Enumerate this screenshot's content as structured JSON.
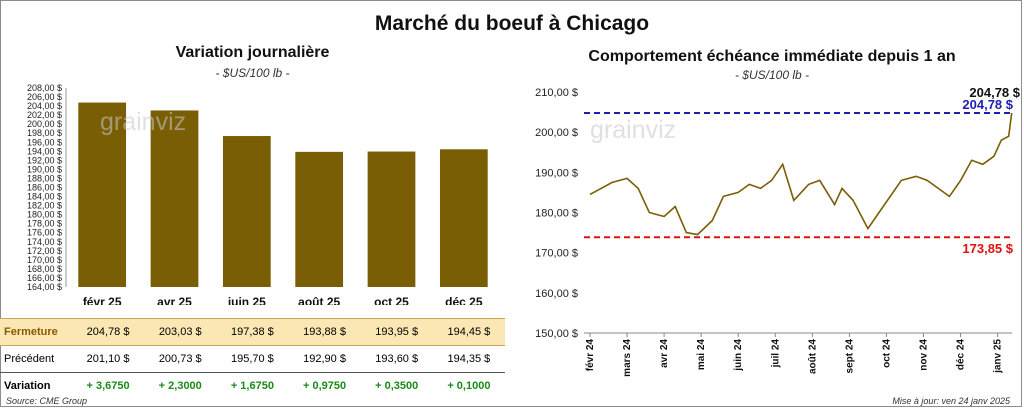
{
  "title": "Marché du boeuf à Chicago",
  "source": "Source: CME Group",
  "updated": "Mise à jour: ven 24 janv 2025",
  "watermark": "grainviz",
  "chart_data": [
    {
      "type": "bar",
      "title": "Variation  journalière",
      "subtitle": "- $US/100 lb -",
      "categories": [
        "févr 25",
        "avr 25",
        "juin 25",
        "août 25",
        "oct 25",
        "déc 25"
      ],
      "values": [
        204.78,
        203.03,
        197.38,
        193.88,
        193.95,
        194.45
      ],
      "ylim": [
        164,
        208
      ],
      "yticks": [
        "164,00 $",
        "166,00 $",
        "168,00 $",
        "170,00 $",
        "172,00 $",
        "174,00 $",
        "176,00 $",
        "178,00 $",
        "180,00 $",
        "182,00 $",
        "184,00 $",
        "186,00 $",
        "188,00 $",
        "190,00 $",
        "192,00 $",
        "194,00 $",
        "196,00 $",
        "198,00 $",
        "200,00 $",
        "202,00 $",
        "204,00 $",
        "206,00 $",
        "208,00 $"
      ],
      "color": "#7a5e05",
      "table": {
        "rows": [
          {
            "label": "Fermeture",
            "values": [
              "204,78  $",
              "203,03  $",
              "197,38  $",
              "193,88  $",
              "193,95  $",
              "194,45  $"
            ]
          },
          {
            "label": "Précédent",
            "values": [
              "201,10  $",
              "200,73  $",
              "195,70  $",
              "192,90  $",
              "193,60  $",
              "194,35  $"
            ]
          },
          {
            "label": "Variation",
            "values": [
              "+ 3,6750",
              "+ 2,3000",
              "+ 1,6750",
              "+ 0,9750",
              "+ 0,3500",
              "+ 0,1000"
            ]
          }
        ]
      }
    },
    {
      "type": "line",
      "title": "Comportement  échéance immédiate depuis 1 an",
      "subtitle": "- $US/100 lb -",
      "ylim": [
        150,
        210
      ],
      "yticks": [
        "150,00 $",
        "160,00 $",
        "170,00 $",
        "180,00 $",
        "190,00 $",
        "200,00 $",
        "210,00 $"
      ],
      "xticks": [
        "févr 24",
        "mars 24",
        "avr 24",
        "mai 24",
        "juin 24",
        "juil 24",
        "août 24",
        "sept 24",
        "oct 24",
        "nov 24",
        "déc 24",
        "janv 25"
      ],
      "line_color": "#7a5e05",
      "series": [
        {
          "x": [
            0.0,
            0.3,
            0.6,
            1.0,
            1.3,
            1.6,
            2.0,
            2.3,
            2.6,
            2.9,
            3.3,
            3.6,
            4.0,
            4.3,
            4.6,
            4.9,
            5.2,
            5.5,
            5.9,
            6.2,
            6.6,
            6.8,
            7.1,
            7.5,
            7.8,
            8.1,
            8.4,
            8.8,
            9.1,
            9.4,
            9.7,
            10.0,
            10.3,
            10.6,
            10.9,
            11.1,
            11.3,
            11.38
          ],
          "y": [
            184.5,
            186,
            187.5,
            188.5,
            186,
            180,
            179,
            181.5,
            175,
            174.5,
            178,
            184,
            185,
            187,
            186,
            188,
            192,
            183,
            187,
            188,
            182,
            186,
            183,
            176,
            180,
            184,
            188,
            189,
            188,
            186,
            184,
            188,
            193,
            192,
            194,
            198,
            199,
            204.78
          ]
        }
      ],
      "hlines": [
        {
          "value": 204.78,
          "label": "204,78 $",
          "color": "#1f1fb0"
        },
        {
          "value": 173.85,
          "label": "173,85 $",
          "color": "#e01010"
        }
      ],
      "last_value_label": "204,78 $"
    }
  ]
}
